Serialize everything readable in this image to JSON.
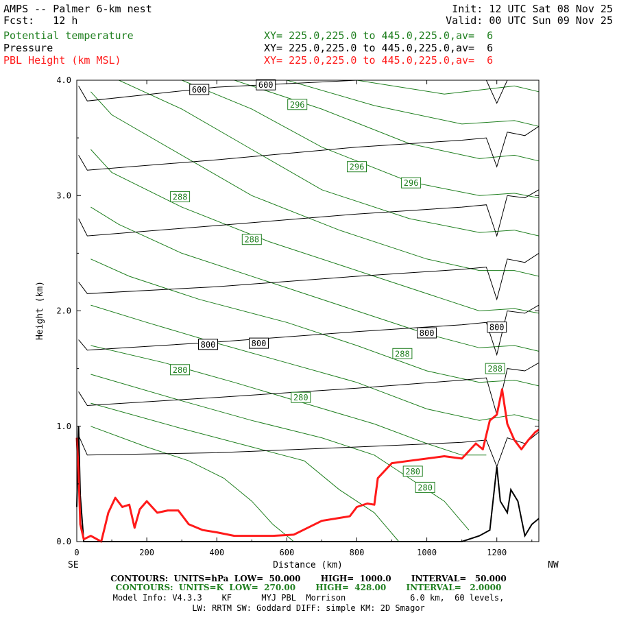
{
  "header": {
    "title": "AMPS -- Palmer 6-km nest",
    "fcst_label": "Fcst:   12 h",
    "init": "Init: 12 UTC Sat 08 Nov 25",
    "valid": "Valid: 00 UTC Sun 09 Nov 25",
    "fields": [
      {
        "name": "Potential temperature",
        "xy": "XY= 225.0,225.0 to 445.0,225.0,av=  6",
        "color": "#1f7f1f"
      },
      {
        "name": "Pressure",
        "xy": "XY= 225.0,225.0 to 445.0,225.0,av=  6",
        "color": "#000000"
      },
      {
        "name": "PBL Height (km MSL)",
        "xy": "XY= 225.0,225.0 to 445.0,225.0,av=  6",
        "color": "#ff1a1a"
      }
    ]
  },
  "footer": {
    "contours_pressure": "CONTOURS:  UNITS=hPa  LOW=  50.000       HIGH=  1000.0       INTERVAL=   50.000",
    "contours_theta": "CONTOURS:  UNITS=K  LOW=  270.00       HIGH=  428.00       INTERVAL=   2.0000",
    "model_info": "Model Info: V4.3.3    KF      MYJ PBL  Morrison             6.0 km,  60 levels,",
    "physics": "LW: RRTM SW: Goddard DIFF: simple KM: 2D Smagor"
  },
  "chart_data": {
    "type": "line",
    "xlabel": "Distance (km)",
    "ylabel": "Height (km)",
    "xlim": [
      0,
      1320
    ],
    "ylim": [
      0,
      4.0
    ],
    "x_ticks": [
      0,
      200,
      400,
      600,
      800,
      1000,
      1200
    ],
    "y_ticks": [
      "0.0",
      "1.0",
      "2.0",
      "3.0",
      "4.0"
    ],
    "x_left_label": "SE",
    "x_right_label": "NW",
    "pressure_isobars": [
      {
        "x": [
          5,
          30,
          400,
          800,
          1100,
          1170,
          1200,
          1230,
          1280,
          1320
        ],
        "y": [
          0.92,
          0.75,
          0.77,
          0.82,
          0.86,
          0.88,
          0.65,
          0.9,
          0.85,
          0.95
        ]
      },
      {
        "x": [
          5,
          30,
          400,
          800,
          1100,
          1170,
          1200,
          1230,
          1280,
          1320
        ],
        "y": [
          1.3,
          1.18,
          1.25,
          1.33,
          1.4,
          1.42,
          1.1,
          1.5,
          1.48,
          1.55
        ]
      },
      {
        "x": [
          5,
          30,
          400,
          800,
          1100,
          1170,
          1200,
          1230,
          1280,
          1320
        ],
        "y": [
          1.75,
          1.66,
          1.73,
          1.82,
          1.88,
          1.9,
          1.62,
          2.0,
          1.98,
          2.05
        ]
      },
      {
        "x": [
          5,
          30,
          400,
          800,
          1100,
          1170,
          1200,
          1230,
          1280,
          1320
        ],
        "y": [
          2.25,
          2.15,
          2.21,
          2.3,
          2.36,
          2.38,
          2.1,
          2.45,
          2.42,
          2.5
        ]
      },
      {
        "x": [
          5,
          30,
          400,
          800,
          1100,
          1170,
          1200,
          1230,
          1280,
          1320
        ],
        "y": [
          2.8,
          2.65,
          2.74,
          2.84,
          2.9,
          2.92,
          2.65,
          3.0,
          2.98,
          3.05
        ]
      },
      {
        "x": [
          5,
          30,
          400,
          800,
          1100,
          1170,
          1200,
          1230,
          1280,
          1320
        ],
        "y": [
          3.35,
          3.22,
          3.31,
          3.42,
          3.48,
          3.5,
          3.25,
          3.55,
          3.52,
          3.6
        ]
      },
      {
        "x": [
          5,
          30,
          400,
          800,
          1100,
          1170,
          1200,
          1230,
          1280,
          1320
        ],
        "y": [
          3.95,
          3.82,
          3.94,
          4.0,
          4.0,
          4.0,
          3.8,
          4.0,
          4.0,
          4.0
        ]
      }
    ],
    "pressure_labels": [
      {
        "text": "600",
        "x": 350,
        "y": 3.92
      },
      {
        "text": "600",
        "x": 540,
        "y": 3.96
      },
      {
        "text": "800",
        "x": 375,
        "y": 1.71
      },
      {
        "text": "800",
        "x": 520,
        "y": 1.72
      },
      {
        "text": "800",
        "x": 1000,
        "y": 1.81
      },
      {
        "text": "800",
        "x": 1200,
        "y": 1.86
      }
    ],
    "theta_isentropes": [
      {
        "x": [
          40,
          200,
          320,
          420,
          500,
          560,
          620
        ],
        "y": [
          1.0,
          0.82,
          0.7,
          0.55,
          0.35,
          0.15,
          0.0
        ]
      },
      {
        "x": [
          40,
          300,
          500,
          650,
          750,
          850,
          920
        ],
        "y": [
          1.2,
          0.98,
          0.82,
          0.7,
          0.45,
          0.25,
          0.0
        ]
      },
      {
        "x": [
          40,
          300,
          500,
          700,
          850,
          950,
          1050,
          1120
        ],
        "y": [
          1.45,
          1.22,
          1.05,
          0.9,
          0.75,
          0.55,
          0.35,
          0.1
        ]
      },
      {
        "x": [
          40,
          250,
          450,
          650,
          850,
          1000,
          1100,
          1170
        ],
        "y": [
          1.7,
          1.55,
          1.38,
          1.2,
          1.02,
          0.85,
          0.75,
          0.75
        ]
      },
      {
        "x": [
          40,
          200,
          400,
          600,
          800,
          1000,
          1150,
          1250,
          1320
        ],
        "y": [
          2.05,
          1.9,
          1.72,
          1.55,
          1.38,
          1.15,
          1.05,
          1.1,
          1.05
        ]
      },
      {
        "x": [
          40,
          150,
          350,
          600,
          800,
          1000,
          1150,
          1250,
          1320
        ],
        "y": [
          2.45,
          2.3,
          2.1,
          1.9,
          1.7,
          1.48,
          1.38,
          1.4,
          1.35
        ]
      },
      {
        "x": [
          40,
          120,
          300,
          550,
          800,
          1000,
          1150,
          1250,
          1320
        ],
        "y": [
          2.9,
          2.75,
          2.5,
          2.25,
          2.0,
          1.8,
          1.68,
          1.7,
          1.65
        ]
      },
      {
        "x": [
          40,
          100,
          300,
          550,
          800,
          1050,
          1150,
          1250,
          1320
        ],
        "y": [
          3.4,
          3.2,
          2.9,
          2.6,
          2.35,
          2.1,
          2.0,
          2.02,
          1.98
        ]
      },
      {
        "x": [
          40,
          100,
          300,
          500,
          750,
          1000,
          1150,
          1250,
          1320
        ],
        "y": [
          3.9,
          3.7,
          3.35,
          3.0,
          2.7,
          2.45,
          2.35,
          2.35,
          2.3
        ]
      },
      {
        "x": [
          120,
          300,
          500,
          700,
          950,
          1150,
          1250,
          1320
        ],
        "y": [
          4.0,
          3.75,
          3.4,
          3.05,
          2.8,
          2.68,
          2.7,
          2.65
        ]
      },
      {
        "x": [
          300,
          500,
          700,
          950,
          1150,
          1250,
          1320
        ],
        "y": [
          4.0,
          3.75,
          3.42,
          3.12,
          3.0,
          3.02,
          2.98
        ]
      },
      {
        "x": [
          450,
          700,
          950,
          1150,
          1250,
          1320
        ],
        "y": [
          4.0,
          3.75,
          3.45,
          3.32,
          3.35,
          3.3
        ]
      },
      {
        "x": [
          600,
          850,
          1100,
          1250,
          1320
        ],
        "y": [
          4.0,
          3.78,
          3.62,
          3.65,
          3.6
        ]
      },
      {
        "x": [
          800,
          1050,
          1250,
          1320
        ],
        "y": [
          4.0,
          3.88,
          3.95,
          3.9
        ]
      }
    ],
    "theta_labels": [
      {
        "text": "280",
        "x": 295,
        "y": 1.49
      },
      {
        "text": "280",
        "x": 640,
        "y": 1.25
      },
      {
        "text": "280",
        "x": 960,
        "y": 0.61
      },
      {
        "text": "280",
        "x": 995,
        "y": 0.47
      },
      {
        "text": "288",
        "x": 295,
        "y": 2.99
      },
      {
        "text": "288",
        "x": 500,
        "y": 2.62
      },
      {
        "text": "288",
        "x": 930,
        "y": 1.63
      },
      {
        "text": "288",
        "x": 1195,
        "y": 1.5
      },
      {
        "text": "296",
        "x": 630,
        "y": 3.79
      },
      {
        "text": "296",
        "x": 800,
        "y": 3.25
      },
      {
        "text": "296",
        "x": 955,
        "y": 3.11
      }
    ],
    "terrain": {
      "x": [
        0,
        5,
        10,
        20,
        30,
        60,
        1100,
        1150,
        1180,
        1200,
        1210,
        1230,
        1240,
        1260,
        1280,
        1300,
        1320
      ],
      "y": [
        0.3,
        1.0,
        0.4,
        0.0,
        0.0,
        0.0,
        0.0,
        0.05,
        0.1,
        0.65,
        0.35,
        0.25,
        0.45,
        0.35,
        0.05,
        0.15,
        0.2
      ]
    },
    "pbl_height": {
      "color": "#ff1a1a",
      "x": [
        0,
        5,
        10,
        20,
        40,
        70,
        90,
        110,
        130,
        150,
        165,
        180,
        200,
        230,
        260,
        290,
        320,
        360,
        400,
        450,
        500,
        560,
        620,
        660,
        700,
        740,
        780,
        800,
        830,
        850,
        860,
        900,
        950,
        1000,
        1050,
        1100,
        1140,
        1160,
        1180,
        1200,
        1215,
        1230,
        1250,
        1270,
        1290,
        1310,
        1320
      ],
      "y": [
        0.9,
        0.6,
        0.15,
        0.02,
        0.05,
        0.0,
        0.25,
        0.38,
        0.3,
        0.32,
        0.12,
        0.28,
        0.35,
        0.25,
        0.27,
        0.27,
        0.15,
        0.1,
        0.08,
        0.05,
        0.05,
        0.05,
        0.06,
        0.12,
        0.18,
        0.2,
        0.22,
        0.3,
        0.33,
        0.32,
        0.55,
        0.68,
        0.7,
        0.72,
        0.74,
        0.72,
        0.85,
        0.8,
        1.05,
        1.1,
        1.32,
        1.02,
        0.88,
        0.8,
        0.88,
        0.95,
        0.97
      ]
    }
  }
}
